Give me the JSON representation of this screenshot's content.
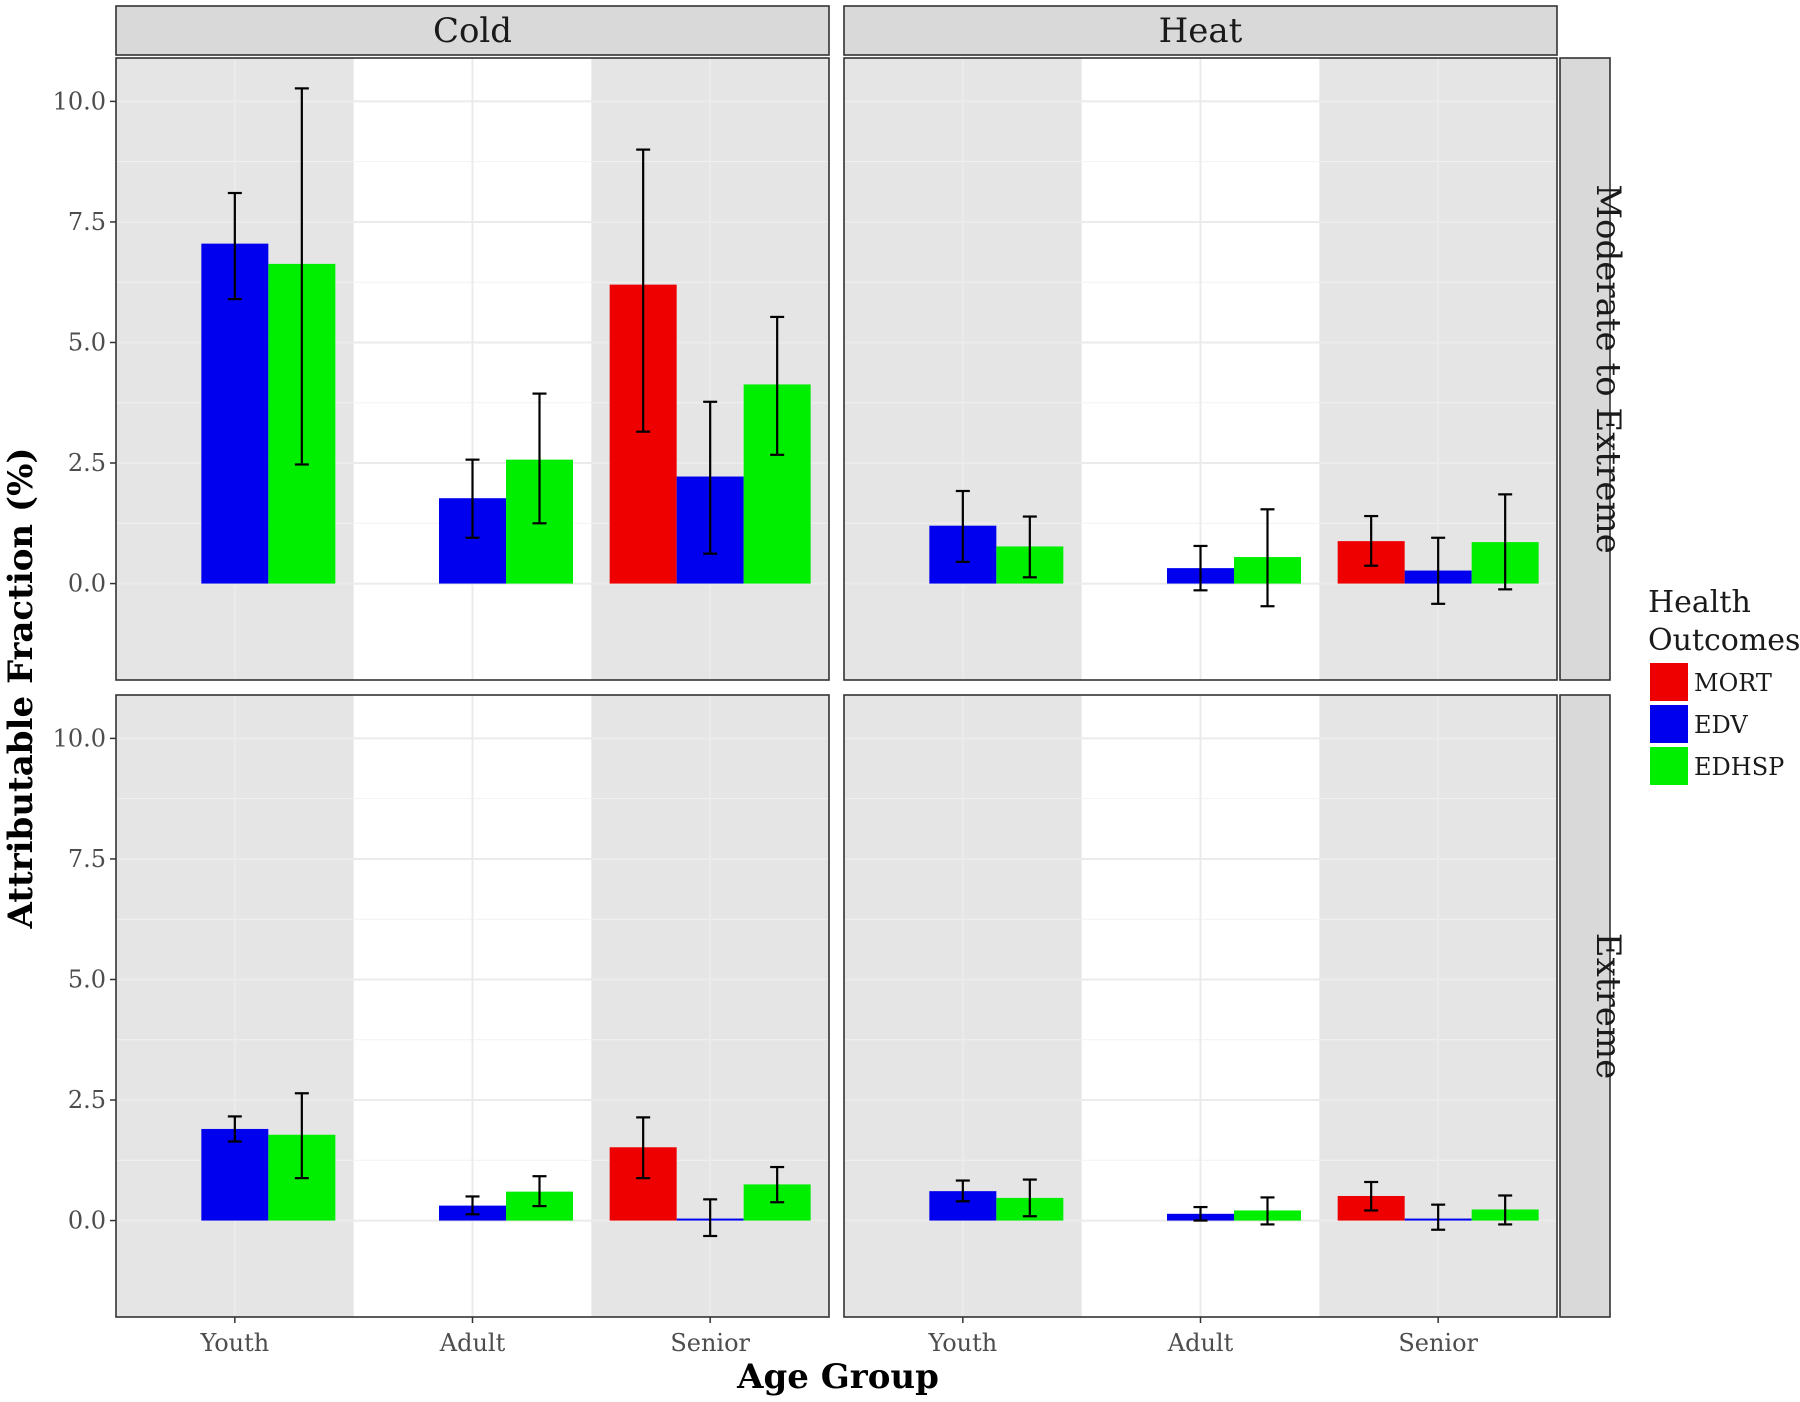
{
  "chart_data": {
    "type": "bar",
    "title": "",
    "xlabel": "Age Group",
    "ylabel": "Attributable Fraction (%)",
    "ylim": [
      -2.0,
      10.9
    ],
    "yticks": [
      "0.0",
      "2.5",
      "5.0",
      "7.5",
      "10.0"
    ],
    "ytick_values": [
      0,
      2.5,
      5,
      7.5,
      10
    ],
    "categories": [
      "Youth",
      "Adult",
      "Senior"
    ],
    "col_facets": [
      "Cold",
      "Heat"
    ],
    "row_facets": [
      "Moderate to Extreme",
      "Extreme"
    ],
    "legend": {
      "title_lines": [
        "Health",
        "Outcomes"
      ],
      "position": "right",
      "items": [
        {
          "name": "MORT",
          "color": "#ee0000"
        },
        {
          "name": "EDV",
          "color": "#0000ee"
        },
        {
          "name": "EDHSP",
          "color": "#00ee00"
        }
      ]
    },
    "panels": [
      {
        "col": "Cold",
        "row": "Moderate to Extreme",
        "series": [
          {
            "name": "MORT",
            "values": [
              null,
              null,
              6.2
            ],
            "lower": [
              null,
              null,
              3.15
            ],
            "upper": [
              null,
              null,
              9.0
            ]
          },
          {
            "name": "EDV",
            "values": [
              7.05,
              1.77,
              2.22
            ],
            "lower": [
              5.9,
              0.95,
              0.62
            ],
            "upper": [
              8.1,
              2.57,
              3.77
            ]
          },
          {
            "name": "EDHSP",
            "values": [
              6.63,
              2.57,
              4.13
            ],
            "lower": [
              2.47,
              1.25,
              2.67
            ],
            "upper": [
              10.27,
              3.94,
              5.53
            ]
          }
        ]
      },
      {
        "col": "Heat",
        "row": "Moderate to Extreme",
        "series": [
          {
            "name": "MORT",
            "values": [
              null,
              null,
              0.88
            ],
            "lower": [
              null,
              null,
              0.37
            ],
            "upper": [
              null,
              null,
              1.4
            ]
          },
          {
            "name": "EDV",
            "values": [
              1.2,
              0.32,
              0.27
            ],
            "lower": [
              0.45,
              -0.14,
              -0.42
            ],
            "upper": [
              1.92,
              0.78,
              0.95
            ]
          },
          {
            "name": "EDHSP",
            "values": [
              0.77,
              0.55,
              0.86
            ],
            "lower": [
              0.13,
              -0.47,
              -0.12
            ],
            "upper": [
              1.39,
              1.54,
              1.85
            ]
          }
        ]
      },
      {
        "col": "Cold",
        "row": "Extreme",
        "series": [
          {
            "name": "MORT",
            "values": [
              null,
              null,
              1.52
            ],
            "lower": [
              null,
              null,
              0.88
            ],
            "upper": [
              null,
              null,
              2.14
            ]
          },
          {
            "name": "EDV",
            "values": [
              1.9,
              0.31,
              0.04
            ],
            "lower": [
              1.64,
              0.13,
              -0.32
            ],
            "upper": [
              2.16,
              0.5,
              0.44
            ]
          },
          {
            "name": "EDHSP",
            "values": [
              1.78,
              0.6,
              0.75
            ],
            "lower": [
              0.88,
              0.3,
              0.38
            ],
            "upper": [
              2.64,
              0.92,
              1.11
            ]
          }
        ]
      },
      {
        "col": "Heat",
        "row": "Extreme",
        "series": [
          {
            "name": "MORT",
            "values": [
              null,
              null,
              0.51
            ],
            "lower": [
              null,
              null,
              0.21
            ],
            "upper": [
              null,
              null,
              0.8
            ]
          },
          {
            "name": "EDV",
            "values": [
              0.61,
              0.14,
              0.04
            ],
            "lower": [
              0.4,
              0.0,
              -0.19
            ],
            "upper": [
              0.83,
              0.28,
              0.33
            ]
          },
          {
            "name": "EDHSP",
            "values": [
              0.47,
              0.21,
              0.23
            ],
            "lower": [
              0.09,
              -0.08,
              -0.08
            ],
            "upper": [
              0.85,
              0.48,
              0.52
            ]
          }
        ]
      }
    ]
  }
}
